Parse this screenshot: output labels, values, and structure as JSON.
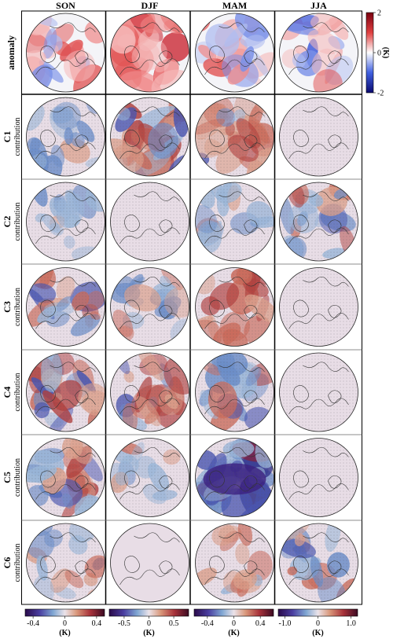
{
  "chart_data": {
    "type": "heatmap",
    "columns": [
      "SON",
      "DJF",
      "MAM",
      "JJA"
    ],
    "rows": [
      {
        "label": "anomaly",
        "sub": ""
      },
      {
        "label": "C1",
        "sub": "contribution"
      },
      {
        "label": "C2",
        "sub": "contribution"
      },
      {
        "label": "C3",
        "sub": "contribution"
      },
      {
        "label": "C4",
        "sub": "contribution"
      },
      {
        "label": "C5",
        "sub": "contribution"
      },
      {
        "label": "C6",
        "sub": "contribution"
      }
    ],
    "panels": [
      [
        {
          "pattern": "mixed",
          "intensity": 0.7,
          "stipple": false
        },
        {
          "pattern": "warm",
          "intensity": 0.9,
          "stipple": false
        },
        {
          "pattern": "mixed-cool",
          "intensity": 0.6,
          "stipple": false
        },
        {
          "pattern": "mixed",
          "intensity": 0.55,
          "stipple": false
        }
      ],
      [
        {
          "pattern": "cool",
          "intensity": 0.5,
          "stipple": true
        },
        {
          "pattern": "warm-cool",
          "intensity": 0.85,
          "stipple": true
        },
        {
          "pattern": "warm",
          "intensity": 0.75,
          "stipple": true
        },
        {
          "pattern": "none",
          "intensity": 0.0,
          "stipple": true
        }
      ],
      [
        {
          "pattern": "cool",
          "intensity": 0.45,
          "stipple": true
        },
        {
          "pattern": "none",
          "intensity": 0.0,
          "stipple": true
        },
        {
          "pattern": "cool",
          "intensity": 0.4,
          "stipple": true
        },
        {
          "pattern": "mixed-cool",
          "intensity": 0.6,
          "stipple": true
        }
      ],
      [
        {
          "pattern": "mixed",
          "intensity": 0.6,
          "stipple": true
        },
        {
          "pattern": "mixed",
          "intensity": 0.55,
          "stipple": true
        },
        {
          "pattern": "warm",
          "intensity": 0.65,
          "stipple": true
        },
        {
          "pattern": "none",
          "intensity": 0.0,
          "stipple": true
        }
      ],
      [
        {
          "pattern": "warm-cool",
          "intensity": 0.7,
          "stipple": true
        },
        {
          "pattern": "warm-cool",
          "intensity": 0.65,
          "stipple": true
        },
        {
          "pattern": "cool",
          "intensity": 0.65,
          "stipple": true
        },
        {
          "pattern": "none",
          "intensity": 0.0,
          "stipple": true
        }
      ],
      [
        {
          "pattern": "warm-cool",
          "intensity": 0.7,
          "stipple": true
        },
        {
          "pattern": "mixed",
          "intensity": 0.35,
          "stipple": true
        },
        {
          "pattern": "deep-cool",
          "intensity": 0.95,
          "stipple": true
        },
        {
          "pattern": "none",
          "intensity": 0.0,
          "stipple": true
        }
      ],
      [
        {
          "pattern": "cool",
          "intensity": 0.4,
          "stipple": true
        },
        {
          "pattern": "none",
          "intensity": 0.0,
          "stipple": false
        },
        {
          "pattern": "warm",
          "intensity": 0.35,
          "stipple": true
        },
        {
          "pattern": "mixed-cool",
          "intensity": 0.55,
          "stipple": true
        }
      ]
    ],
    "anomaly_colorbar": {
      "unit": "(K)",
      "range": [
        -2,
        2
      ],
      "ticks": [
        "2",
        "0",
        "-2"
      ]
    },
    "colorbars": [
      {
        "column": "SON",
        "range": [
          -0.5,
          0.5
        ],
        "ticks": [
          "-0.4",
          "0",
          "0.4"
        ],
        "unit": "(K)"
      },
      {
        "column": "DJF",
        "range": [
          -0.8,
          0.8
        ],
        "ticks": [
          "-0.5",
          "0",
          "0.5"
        ],
        "unit": "(K)"
      },
      {
        "column": "MAM",
        "range": [
          -0.6,
          0.6
        ],
        "ticks": [
          "-0.4",
          "0",
          "0.4"
        ],
        "unit": "(K)"
      },
      {
        "column": "JJA",
        "range": [
          -1.2,
          1.2
        ],
        "ticks": [
          "-1.0",
          "0",
          "1.0"
        ],
        "unit": "(K)"
      }
    ]
  }
}
